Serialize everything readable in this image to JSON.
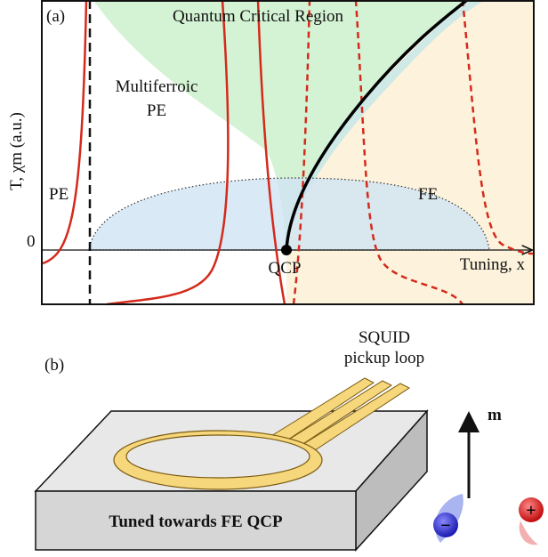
{
  "panel_a": {
    "label": "(a)",
    "region_qc": "Quantum Critical Region",
    "region_mf_1": "Multiferroic",
    "region_mf_2": "PE",
    "region_pe": "PE",
    "region_fe": "FE",
    "y_axis_label": "T, χm (a.u.)",
    "zero": "0",
    "qcp": "QCP",
    "x_axis_label": "Tuning, x"
  },
  "panel_b": {
    "label": "(b)",
    "squid_1": "SQUID",
    "squid_2": "pickup loop",
    "moment": "m",
    "minus": "−",
    "plus": "+",
    "sample": "Tuned towards FE QCP"
  }
}
